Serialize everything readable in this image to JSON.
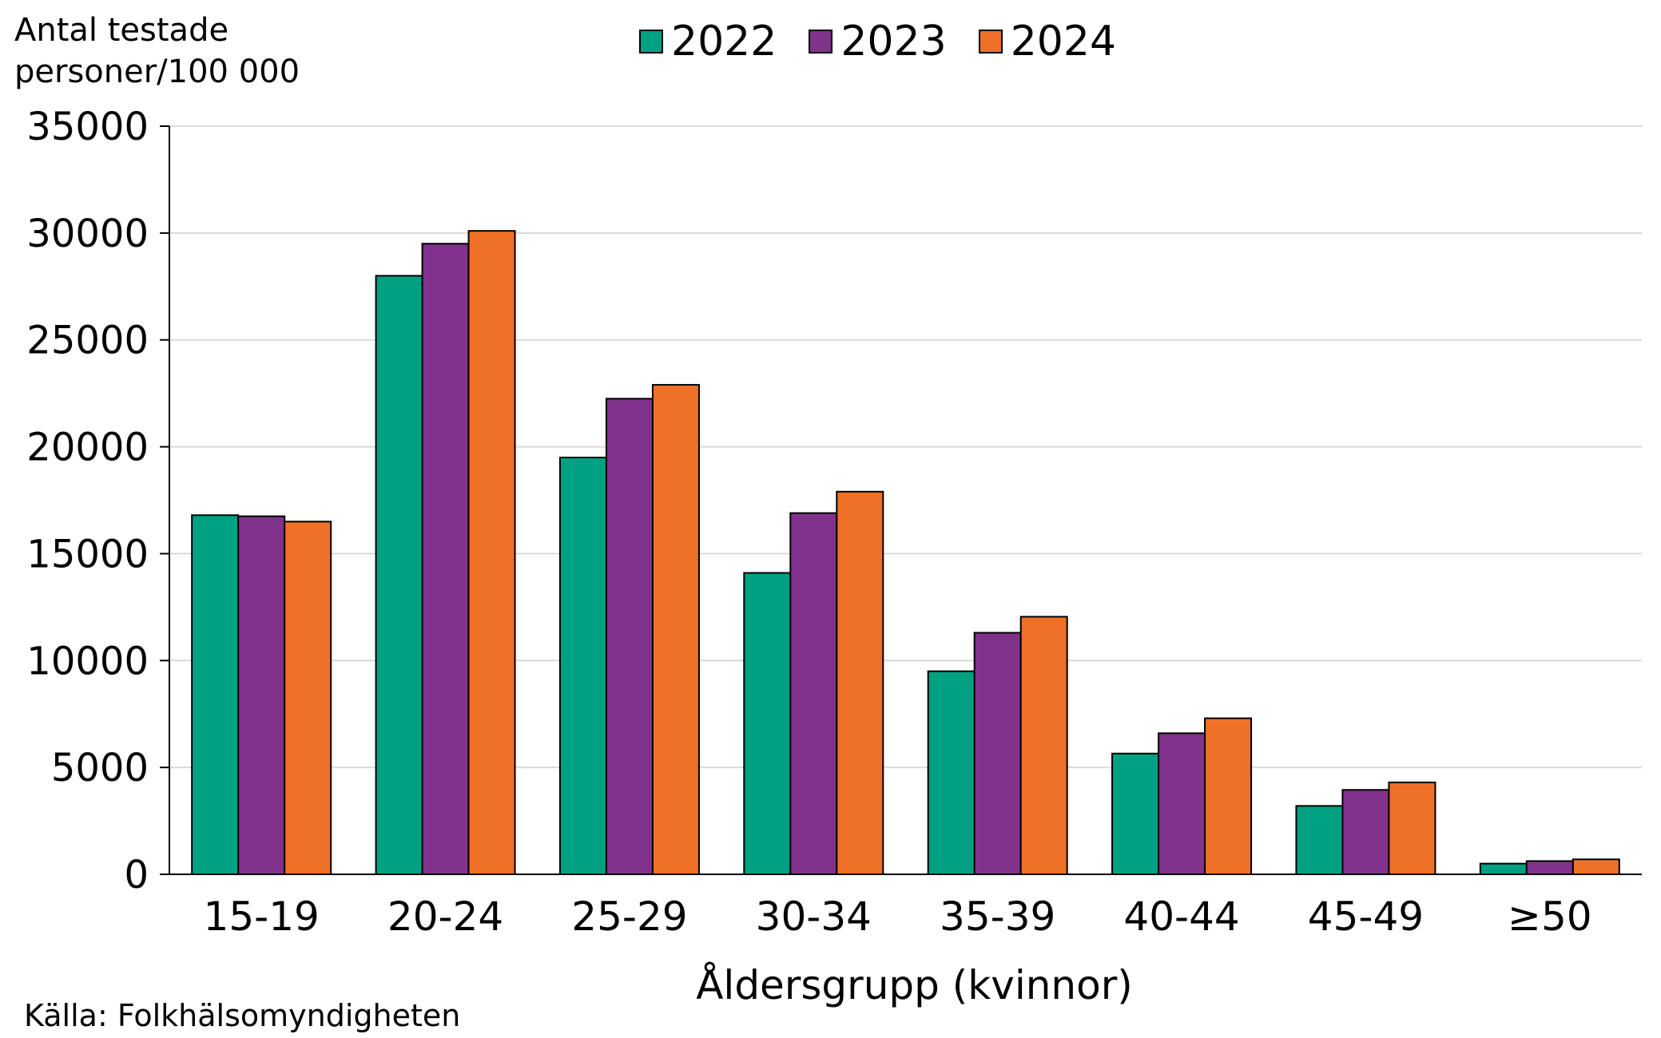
{
  "chart_data": {
    "type": "bar",
    "ylabel": "Antal testade\npersoner/100 000",
    "xlabel": "Åldersgrupp (kvinnor)",
    "source": "Källa: Folkhälsomyndigheten",
    "ylim": [
      0,
      35000
    ],
    "yticks": [
      0,
      5000,
      10000,
      15000,
      20000,
      25000,
      30000,
      35000
    ],
    "ytick_labels": [
      "0",
      "5000",
      "10000",
      "15000",
      "20000",
      "25000",
      "30000",
      "35000"
    ],
    "grid": true,
    "legend_position": "top",
    "categories": [
      "15-19",
      "20-24",
      "25-29",
      "30-34",
      "35-39",
      "40-44",
      "45-49",
      "≥50"
    ],
    "series": [
      {
        "name": "2022",
        "color": "#00a182",
        "values": [
          16800,
          28000,
          19500,
          14100,
          9500,
          5650,
          3200,
          500
        ]
      },
      {
        "name": "2023",
        "color": "#80338a",
        "values": [
          16750,
          29500,
          22250,
          16900,
          11300,
          6600,
          3950,
          620
        ]
      },
      {
        "name": "2024",
        "color": "#ee7127",
        "values": [
          16500,
          30100,
          22900,
          17900,
          12050,
          7300,
          4300,
          700
        ]
      }
    ]
  }
}
